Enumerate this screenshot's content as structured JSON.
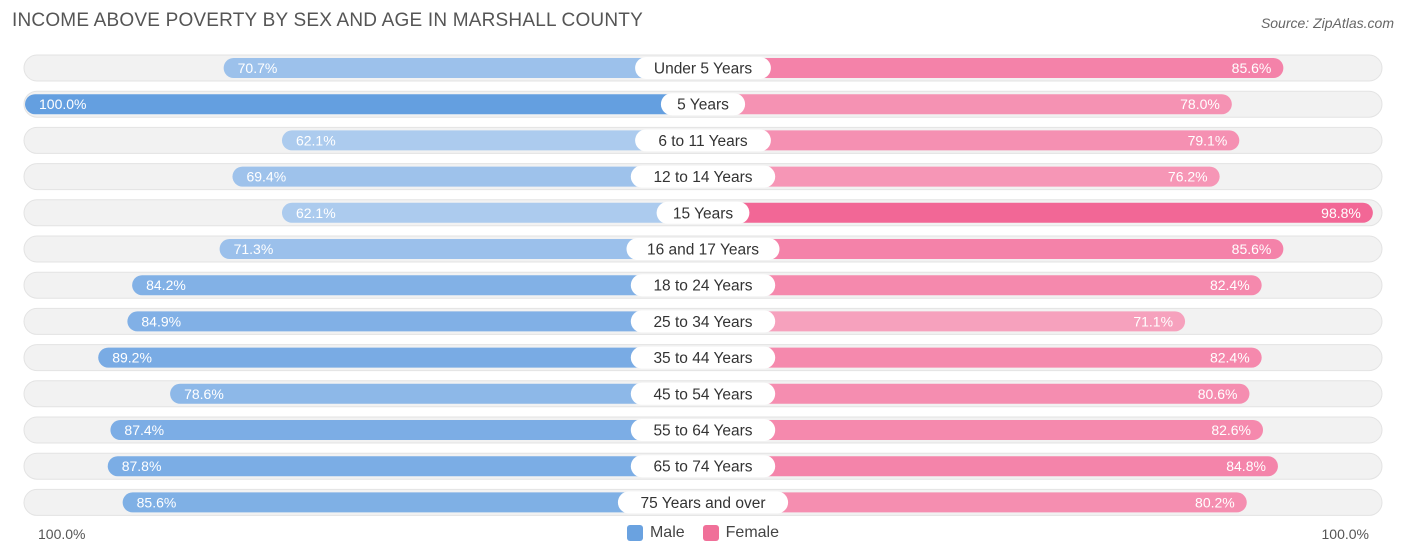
{
  "title": "INCOME ABOVE POVERTY BY SEX AND AGE IN MARSHALL COUNTY",
  "source": "Source: ZipAtlas.com",
  "axis": {
    "left_label": "100.0%",
    "right_label": "100.0%"
  },
  "legend": {
    "male_label": "Male",
    "female_label": "Female",
    "male_color": "#6aa2e0",
    "female_color": "#f07099"
  },
  "chart_data": {
    "type": "bar",
    "orientation": "horizontal-diverging",
    "title": "INCOME ABOVE POVERTY BY SEX AND AGE IN MARSHALL COUNTY",
    "xlim": [
      0,
      100
    ],
    "categories": [
      "Under 5 Years",
      "5 Years",
      "6 to 11 Years",
      "12 to 14 Years",
      "15 Years",
      "16 and 17 Years",
      "18 to 24 Years",
      "25 to 34 Years",
      "35 to 44 Years",
      "45 to 54 Years",
      "55 to 64 Years",
      "65 to 74 Years",
      "75 Years and over"
    ],
    "series": [
      {
        "name": "Male",
        "values": [
          70.7,
          100.0,
          62.1,
          69.4,
          62.1,
          71.3,
          84.2,
          84.9,
          89.2,
          78.6,
          87.4,
          87.8,
          85.6
        ],
        "labels": [
          "70.7%",
          "100.0%",
          "62.1%",
          "69.4%",
          "62.1%",
          "71.3%",
          "84.2%",
          "84.9%",
          "89.2%",
          "78.6%",
          "87.4%",
          "87.8%",
          "85.6%"
        ]
      },
      {
        "name": "Female",
        "values": [
          85.6,
          78.0,
          79.1,
          76.2,
          98.8,
          85.6,
          82.4,
          71.1,
          82.4,
          80.6,
          82.6,
          84.8,
          80.2
        ],
        "labels": [
          "85.6%",
          "78.0%",
          "79.1%",
          "76.2%",
          "98.8%",
          "85.6%",
          "82.4%",
          "71.1%",
          "82.4%",
          "80.6%",
          "82.6%",
          "84.8%",
          "80.2%"
        ]
      }
    ]
  }
}
